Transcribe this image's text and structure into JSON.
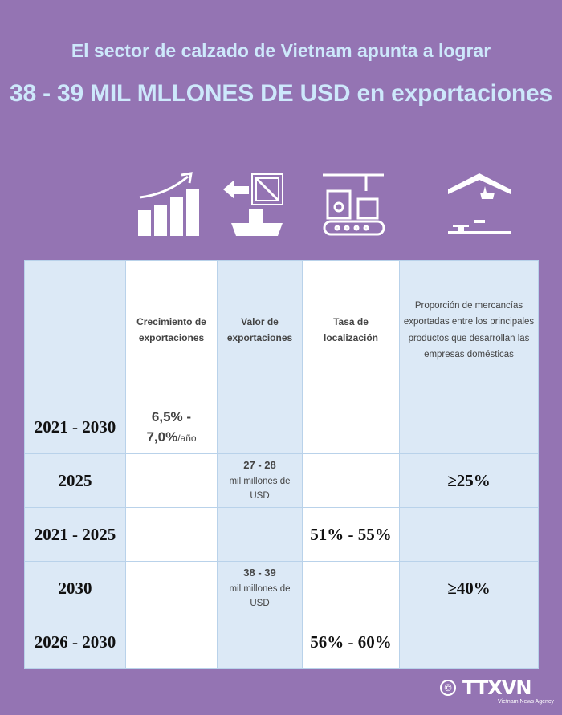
{
  "title": {
    "line1": "El sector de calzado de Vietnam apunta a lograr",
    "line2": "38 - 39 MIL MLLONES DE USD en exportaciones"
  },
  "icons": [
    "growth-chart-icon",
    "export-ship-icon",
    "production-line-icon",
    "domestic-business-icon"
  ],
  "table": {
    "headers": [
      "",
      "Crecimiento de exportaciones",
      "Valor de exportaciones",
      "Tasa de localización",
      "Proporción de mercancías exportadas entre los principales productos que desarrollan las empresas domésticas"
    ],
    "rows": [
      {
        "period": "2021 - 2030",
        "growth": "6,5% - 7,0%",
        "growth_unit": "/año",
        "value_num": "",
        "value_unit": "",
        "localization": "",
        "proportion": ""
      },
      {
        "period": "2025",
        "growth": "",
        "growth_unit": "",
        "value_num": "27 - 28",
        "value_unit": "mil millones de USD",
        "localization": "",
        "proportion": "≥25%"
      },
      {
        "period": "2021 - 2025",
        "growth": "",
        "growth_unit": "",
        "value_num": "",
        "value_unit": "",
        "localization": "51% - 55%",
        "proportion": ""
      },
      {
        "period": "2030",
        "growth": "",
        "growth_unit": "",
        "value_num": "38 - 39",
        "value_unit": "mil millones de USD",
        "localization": "",
        "proportion": "≥40%"
      },
      {
        "period": "2026 - 2030",
        "growth": "",
        "growth_unit": "",
        "value_num": "",
        "value_unit": "",
        "localization": "56% - 60%",
        "proportion": ""
      }
    ]
  },
  "logo": {
    "copyright": "©",
    "name": "TTXVN",
    "tagline": "Vietnam News Agency"
  }
}
